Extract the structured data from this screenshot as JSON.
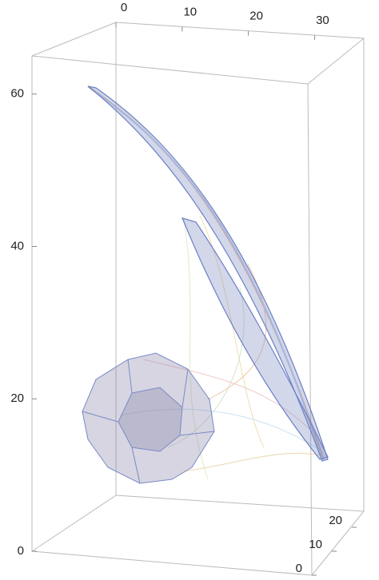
{
  "chart_data": {
    "type": "3d",
    "xlim": [
      0,
      32
    ],
    "xticks": [
      0,
      10,
      20,
      30
    ],
    "ylim": [
      0,
      24
    ],
    "yticks": [
      0,
      10,
      20
    ],
    "zlim": [
      0,
      65
    ],
    "zticks": [
      0,
      20,
      40,
      60
    ]
  }
}
